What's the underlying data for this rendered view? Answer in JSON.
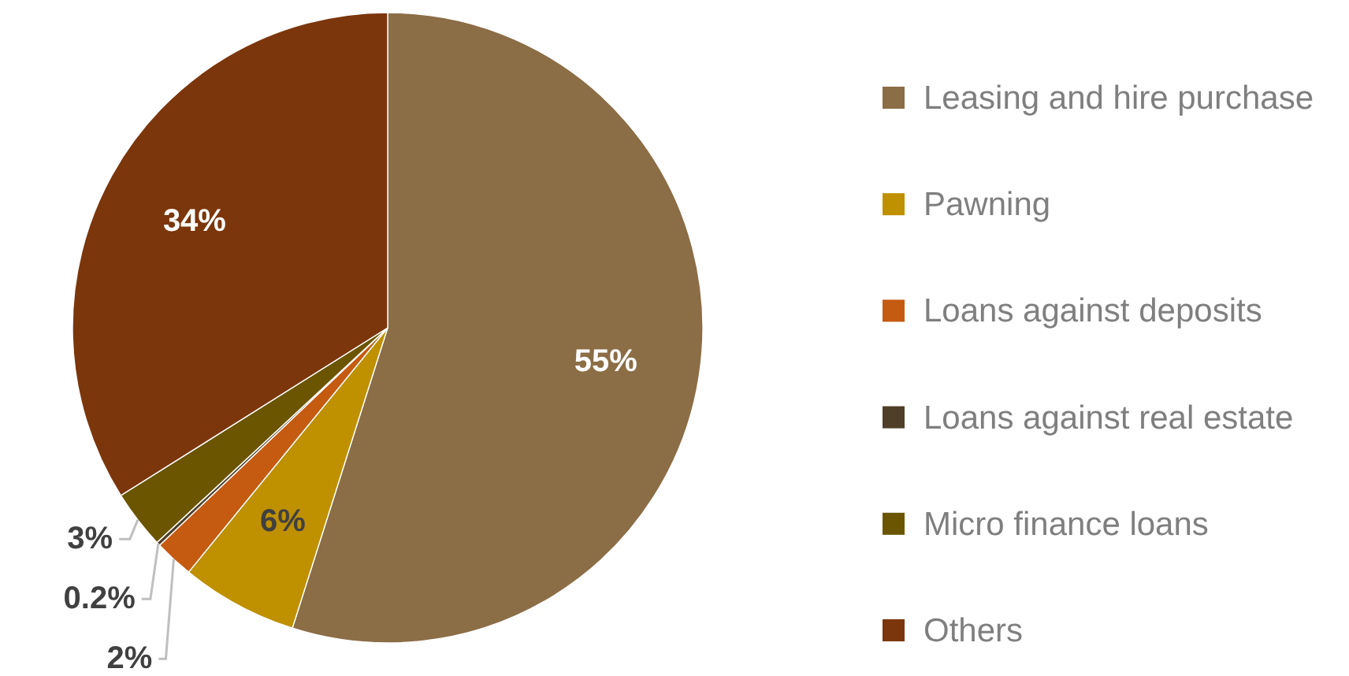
{
  "chart_data": {
    "type": "pie",
    "categories": [
      "Leasing and hire purchase",
      "Pawning",
      "Loans against deposits",
      "Loans against real estate",
      "Micro finance loans",
      "Others"
    ],
    "values": [
      55,
      6,
      2,
      0.2,
      3,
      34
    ],
    "colors": [
      "#8b6d46",
      "#bf9000",
      "#c55a11",
      "#4f3f28",
      "#6b5500",
      "#7b360c"
    ],
    "value_labels": [
      "55%",
      "6%",
      "2%",
      "0.2%",
      "3%",
      "34%"
    ],
    "legend": "right"
  }
}
